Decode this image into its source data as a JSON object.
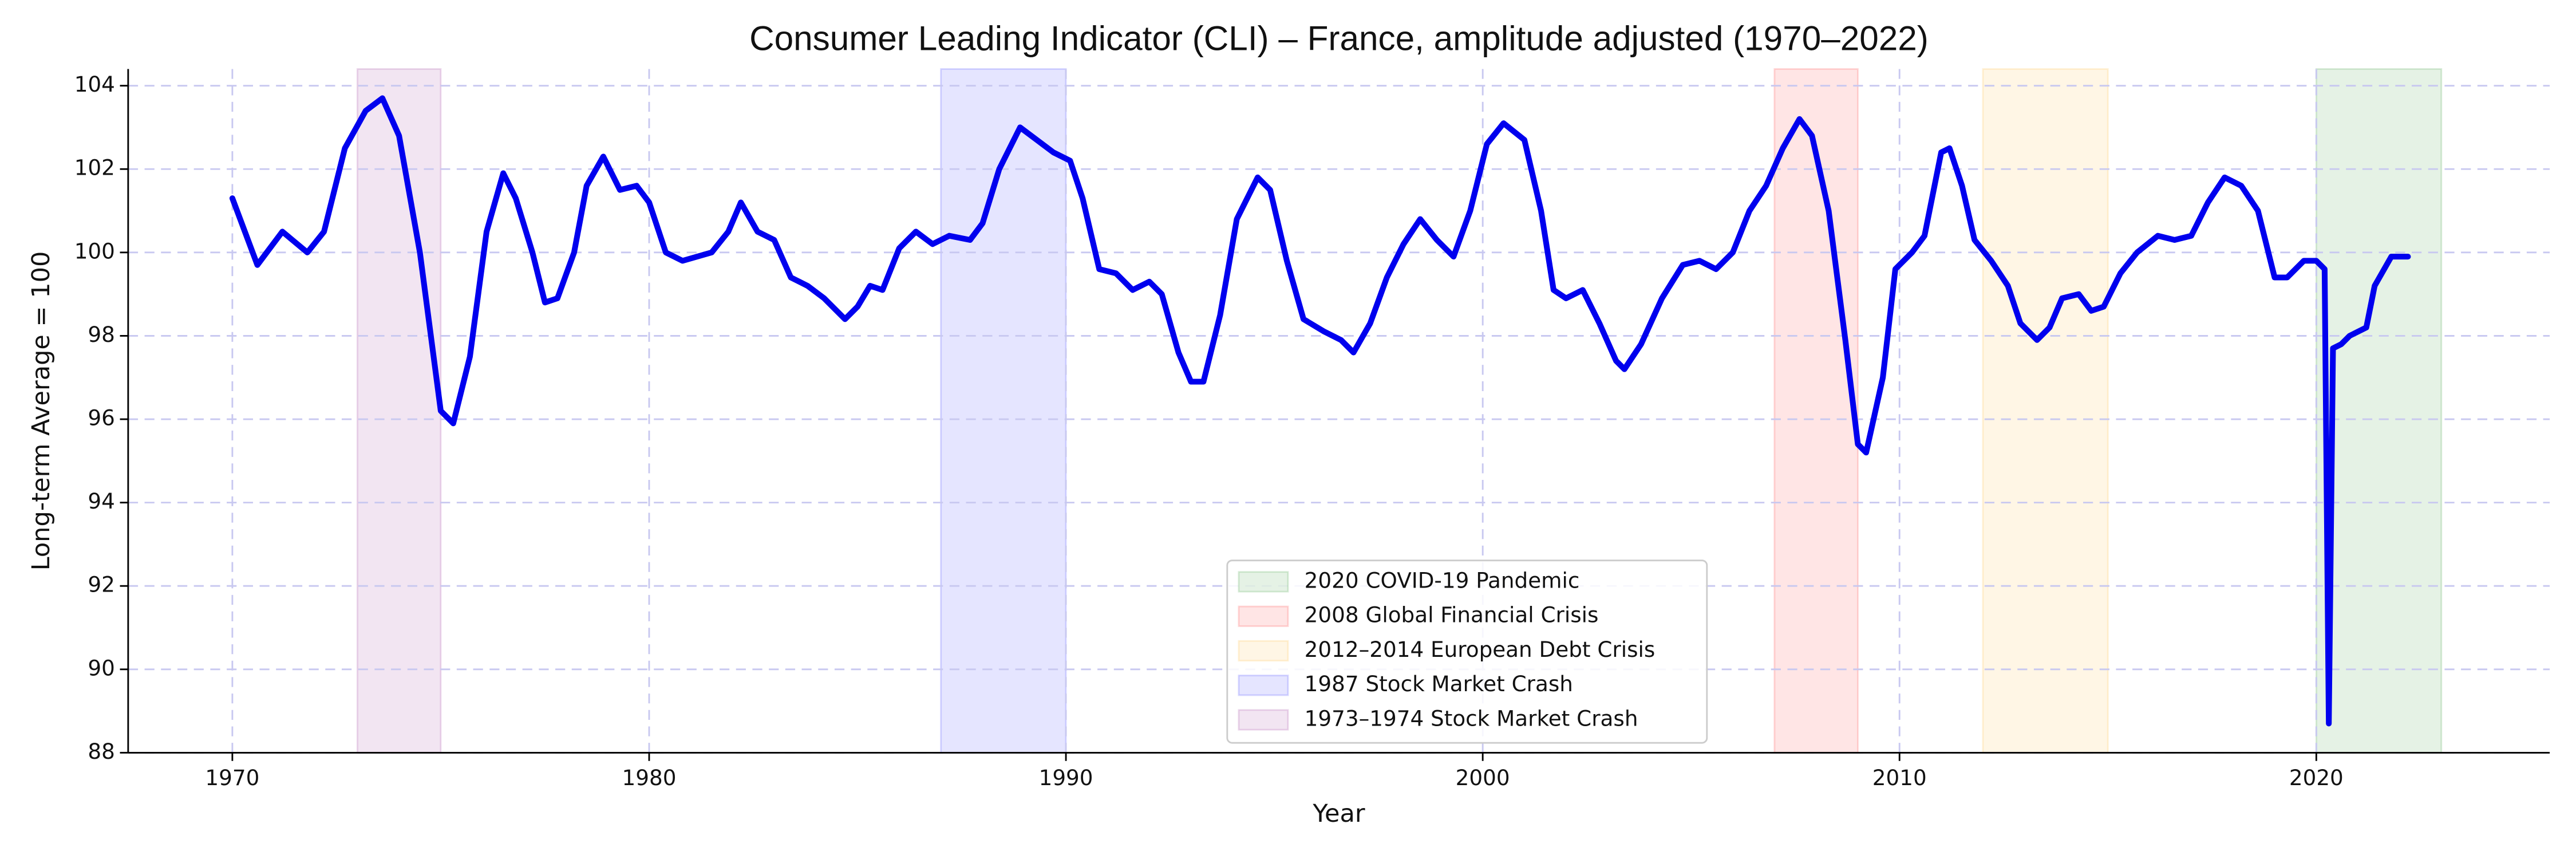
{
  "chart_data": {
    "type": "line",
    "title": "Consumer Leading Indicator (CLI) – France, amplitude adjusted (1970–2022)",
    "xlabel": "Year",
    "ylabel": "Long-term Average = 100",
    "xlim": [
      1967.5,
      2025.6
    ],
    "xticks": [
      1970,
      1980,
      1990,
      2000,
      2010,
      2020
    ],
    "ylim": [
      88,
      104.4
    ],
    "yticks": [
      88,
      90,
      92,
      94,
      96,
      98,
      100,
      102,
      104
    ],
    "grid": true,
    "legend_loc": "lower center",
    "color": "#0000ee",
    "x": [
      1970.0,
      1970.6,
      1971.2,
      1971.8,
      1972.2,
      1972.7,
      1973.2,
      1973.6,
      1974.0,
      1974.5,
      1975.0,
      1975.3,
      1975.7,
      1976.1,
      1976.5,
      1976.8,
      1977.2,
      1977.5,
      1977.8,
      1978.2,
      1978.5,
      1978.9,
      1979.3,
      1979.7,
      1980.0,
      1980.4,
      1980.8,
      1981.5,
      1981.9,
      1982.2,
      1982.6,
      1983.0,
      1983.4,
      1983.8,
      1984.2,
      1984.7,
      1985.0,
      1985.3,
      1985.6,
      1986.0,
      1986.4,
      1986.8,
      1987.2,
      1987.7,
      1988.0,
      1988.4,
      1988.9,
      1989.3,
      1989.7,
      1990.1,
      1990.4,
      1990.8,
      1991.2,
      1991.6,
      1992.0,
      1992.3,
      1992.7,
      1993.0,
      1993.3,
      1993.7,
      1994.1,
      1994.6,
      1994.9,
      1995.3,
      1995.7,
      1996.2,
      1996.6,
      1996.9,
      1997.3,
      1997.7,
      1998.1,
      1998.5,
      1998.9,
      1999.3,
      1999.7,
      2000.1,
      2000.5,
      2001.0,
      2001.4,
      2001.7,
      2002.0,
      2002.4,
      2002.8,
      2003.2,
      2003.4,
      2003.8,
      2004.3,
      2004.8,
      2005.2,
      2005.6,
      2006.0,
      2006.4,
      2006.8,
      2007.2,
      2007.6,
      2007.9,
      2008.3,
      2008.7,
      2009.0,
      2009.2,
      2009.6,
      2009.9,
      2010.3,
      2010.6,
      2011.0,
      2011.2,
      2011.5,
      2011.8,
      2012.2,
      2012.6,
      2012.9,
      2013.3,
      2013.6,
      2013.9,
      2014.3,
      2014.6,
      2014.9,
      2015.3,
      2015.7,
      2016.2,
      2016.6,
      2017.0,
      2017.4,
      2017.8,
      2018.2,
      2018.6,
      2019.0,
      2019.3,
      2019.7,
      2020.0,
      2020.2,
      2020.3,
      2020.4,
      2020.6,
      2020.8,
      2021.0,
      2021.2,
      2021.4,
      2021.8,
      2022.2
    ],
    "values": [
      101.3,
      99.7,
      100.5,
      100.0,
      100.5,
      102.5,
      103.4,
      103.7,
      102.8,
      100.0,
      96.2,
      95.9,
      97.5,
      100.5,
      101.9,
      101.3,
      100.0,
      98.8,
      98.9,
      100.0,
      101.6,
      102.3,
      101.5,
      101.6,
      101.2,
      100.0,
      99.8,
      100.0,
      100.5,
      101.2,
      100.5,
      100.3,
      99.4,
      99.2,
      98.9,
      98.4,
      98.7,
      99.2,
      99.1,
      100.1,
      100.5,
      100.2,
      100.4,
      100.3,
      100.7,
      102.0,
      103.0,
      102.7,
      102.4,
      102.2,
      101.3,
      99.6,
      99.5,
      99.1,
      99.3,
      99.0,
      97.6,
      96.9,
      96.9,
      98.5,
      100.8,
      101.8,
      101.5,
      99.8,
      98.4,
      98.1,
      97.9,
      97.6,
      98.3,
      99.4,
      100.2,
      100.8,
      100.3,
      99.9,
      101.0,
      102.6,
      103.1,
      102.7,
      101.0,
      99.1,
      98.9,
      99.1,
      98.3,
      97.4,
      97.2,
      97.8,
      98.9,
      99.7,
      99.8,
      99.6,
      100.0,
      101.0,
      101.6,
      102.5,
      103.2,
      102.8,
      101.0,
      97.9,
      95.4,
      95.2,
      97.0,
      99.6,
      100.0,
      100.4,
      102.4,
      102.5,
      101.6,
      100.3,
      99.8,
      99.2,
      98.3,
      97.9,
      98.2,
      98.9,
      99.0,
      98.6,
      98.7,
      99.5,
      100.0,
      100.4,
      100.3,
      100.4,
      101.2,
      101.8,
      101.6,
      101.0,
      99.4,
      99.4,
      99.8,
      99.8,
      99.6,
      88.7,
      97.7,
      97.8,
      98.0,
      98.1,
      98.2,
      99.2,
      99.9,
      99.9
    ],
    "shaded_periods": [
      {
        "label": "2020 COVID-19 Pandemic",
        "start": 2020,
        "end": 2023,
        "color": "#008000"
      },
      {
        "label": "2008 Global Financial Crisis",
        "start": 2007,
        "end": 2009,
        "color": "#ff0000"
      },
      {
        "label": "2012–2014 European Debt Crisis",
        "start": 2012,
        "end": 2015,
        "color": "#ffa500"
      },
      {
        "label": "1987 Stock Market Crash",
        "start": 1987,
        "end": 1990,
        "color": "#0000ff"
      },
      {
        "label": "1973–1974 Stock Market Crash",
        "start": 1973,
        "end": 1975,
        "color": "#800080"
      }
    ]
  }
}
